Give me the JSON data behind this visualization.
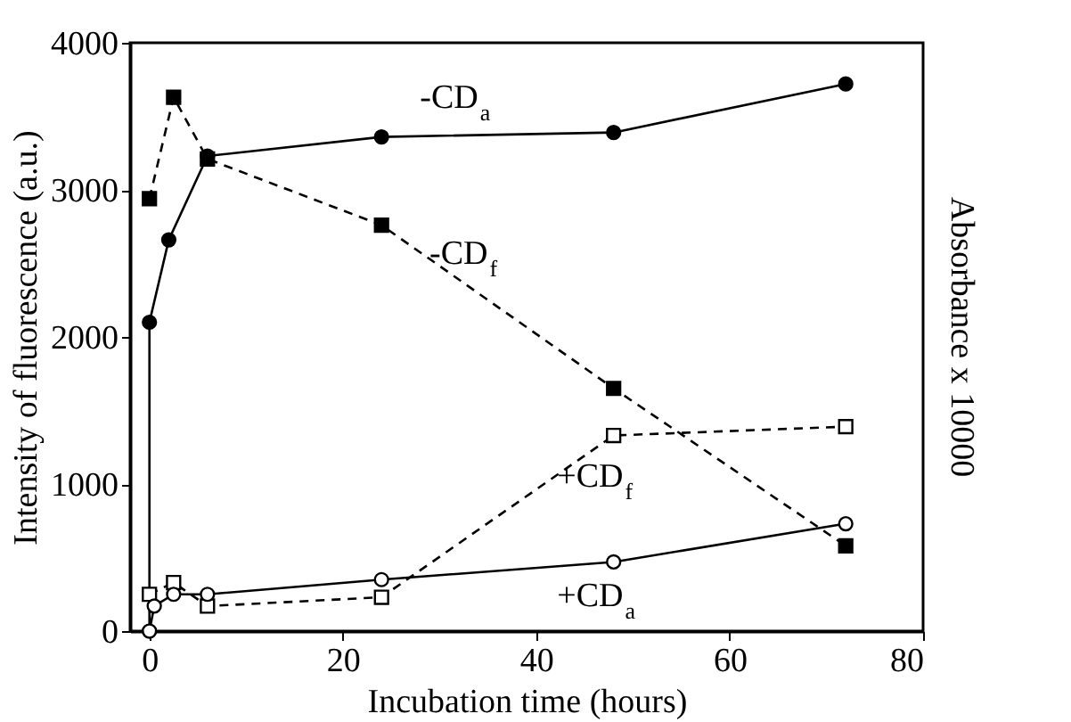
{
  "chart_data": {
    "type": "line",
    "xlabel": "Incubation time (hours)",
    "ylabel": "Intensity of fluorescence (a.u.)",
    "y2label": "Absorbance x 10000",
    "xlim": [
      -2,
      80
    ],
    "xticks": [
      0,
      20,
      40,
      60,
      80
    ],
    "ylim": [
      0,
      4000
    ],
    "yticks": [
      0,
      1000,
      2000,
      3000,
      4000
    ],
    "grid": false,
    "series": [
      {
        "name": "-CD$_{a}$",
        "color": "#000000",
        "marker": "circle",
        "line_style": "solid",
        "x": [
          0,
          0,
          2,
          6,
          24,
          48,
          72
        ],
        "values": [
          0,
          2100,
          2660,
          3230,
          3360,
          3390,
          3720
        ]
      },
      {
        "name": "-CD$_{f}$",
        "color": "#000000",
        "marker": "square",
        "line_style": "dashed",
        "x": [
          0,
          2.5,
          6,
          24,
          48,
          72
        ],
        "values": [
          2940,
          3630,
          3210,
          2760,
          1650,
          580
        ]
      },
      {
        "name": "+CD$_{f}$",
        "color": "#000000",
        "marker": "square",
        "line_style": "dashed",
        "x": [
          0,
          2.5,
          6,
          24,
          48,
          72
        ],
        "values": [
          250,
          330,
          170,
          230,
          1330,
          1390
        ]
      },
      {
        "name": "+CD$_{a}$",
        "color": "#000000",
        "marker": "circle",
        "line_style": "solid",
        "x": [
          0,
          0.5,
          2.5,
          6,
          24,
          48,
          72
        ],
        "values": [
          0,
          170,
          250,
          250,
          350,
          470,
          730
        ]
      }
    ]
  }
}
